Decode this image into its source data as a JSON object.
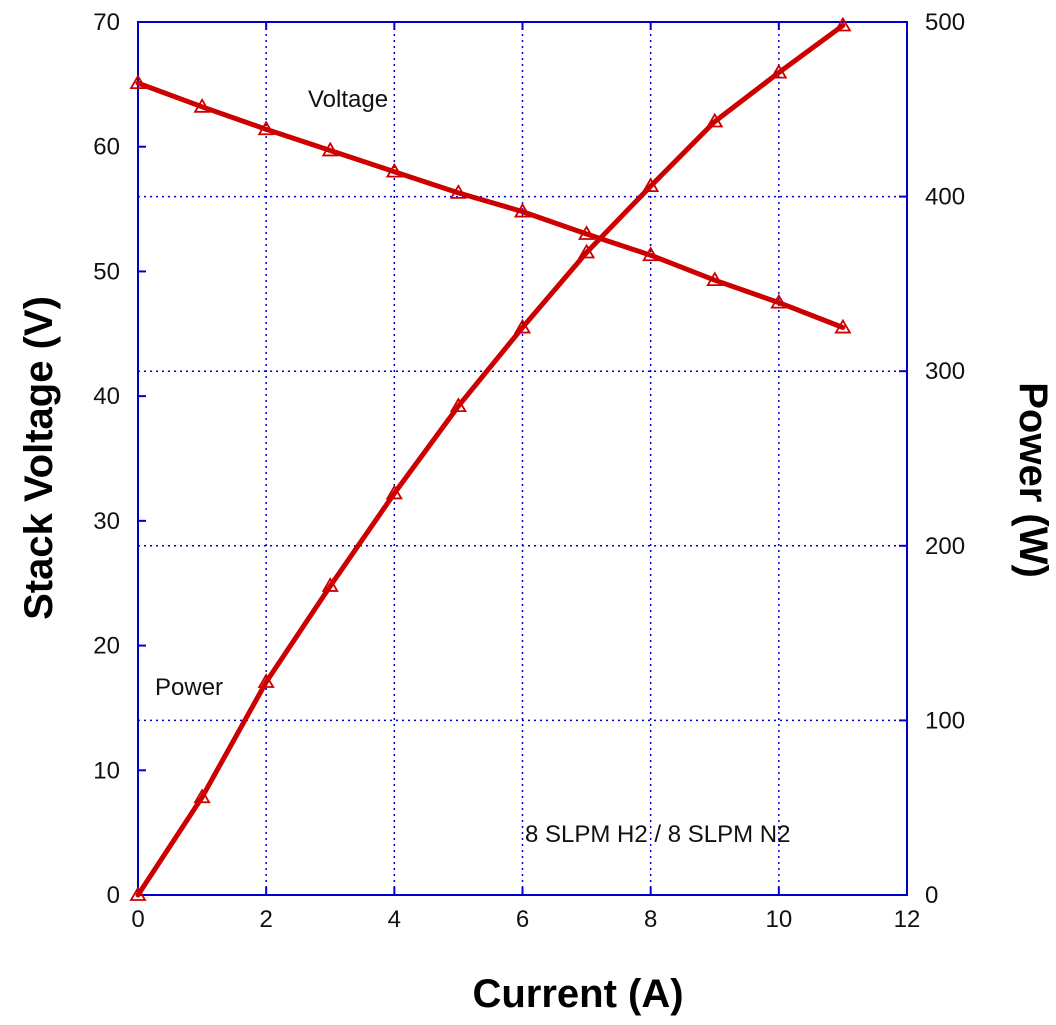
{
  "chart_data": {
    "type": "line",
    "title": "",
    "xlabel": "Current (A)",
    "ylabel": "Stack Voltage (V)",
    "y2label": "Power (W)",
    "xlim": [
      0,
      12
    ],
    "ylim": [
      0,
      70
    ],
    "y2lim": [
      0,
      500
    ],
    "x_ticks": [
      "0",
      "2",
      "4",
      "6",
      "8",
      "10",
      "12"
    ],
    "y_ticks": [
      "0",
      "10",
      "20",
      "30",
      "40",
      "50",
      "60",
      "70"
    ],
    "y2_ticks": [
      "0",
      "100",
      "200",
      "300",
      "400",
      "500"
    ],
    "grid": true,
    "colors": {
      "axis": "#0000cc",
      "grid": "#0000cc",
      "series": "#cc0000"
    },
    "annotations": [
      "Voltage",
      "Power",
      "8 SLPM H2 / 8 SLPM N2"
    ],
    "series": [
      {
        "name": "Voltage",
        "axis": "left",
        "x": [
          0,
          1,
          2,
          3,
          4,
          5,
          6,
          7,
          8,
          9,
          10,
          11
        ],
        "values": [
          65.1,
          63.2,
          61.4,
          59.7,
          58.0,
          56.3,
          54.8,
          53.0,
          51.3,
          49.3,
          47.5,
          45.5
        ]
      },
      {
        "name": "Power",
        "axis": "right",
        "x": [
          0,
          1,
          2,
          3,
          4,
          5,
          6,
          7,
          8,
          9,
          10,
          11
        ],
        "values": [
          0,
          56,
          122,
          177,
          230,
          280,
          325,
          368,
          406,
          443,
          471,
          498
        ]
      }
    ]
  }
}
